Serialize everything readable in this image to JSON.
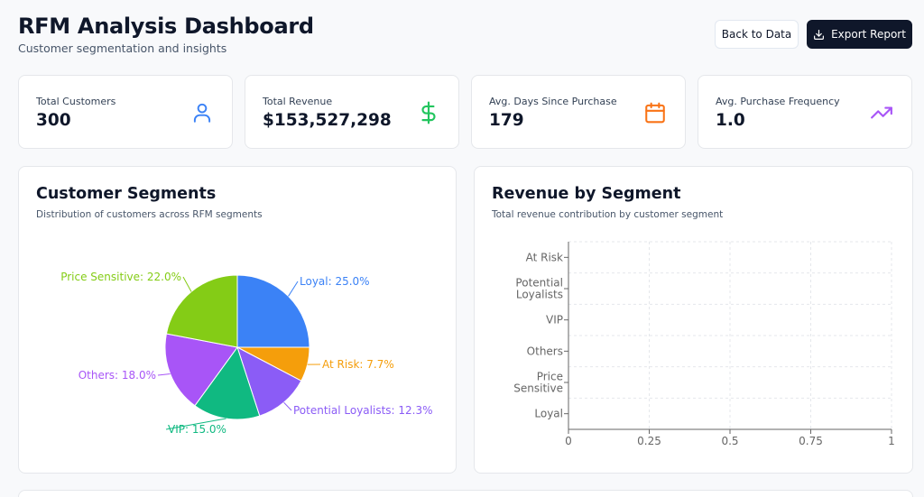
{
  "header": {
    "title": "RFM Analysis Dashboard",
    "subtitle": "Customer segmentation and insights",
    "back_label": "Back to Data",
    "export_label": "Export Report"
  },
  "stats": [
    {
      "label": "Total Customers",
      "value": "300",
      "icon": "user-icon",
      "color": "#3b82f6"
    },
    {
      "label": "Total Revenue",
      "value": "$153,527,298",
      "icon": "dollar-icon",
      "color": "#22c55e"
    },
    {
      "label": "Avg. Days Since Purchase",
      "value": "179",
      "icon": "calendar-icon",
      "color": "#f97316"
    },
    {
      "label": "Avg. Purchase Frequency",
      "value": "1.0",
      "icon": "trending-up-icon",
      "color": "#a855f7"
    }
  ],
  "segments_panel": {
    "title": "Customer Segments",
    "subtitle": "Distribution of customers across RFM segments"
  },
  "revenue_panel": {
    "title": "Revenue by Segment",
    "subtitle": "Total revenue contribution by customer segment"
  },
  "chart_data": [
    {
      "type": "pie",
      "slices": [
        {
          "label": "Loyal",
          "value": 25.0,
          "display": "Loyal: 25.0%",
          "color": "#3b82f6"
        },
        {
          "label": "At Risk",
          "value": 7.7,
          "display": "At Risk: 7.7%",
          "color": "#f59e0b"
        },
        {
          "label": "Potential Loyalists",
          "value": 12.3,
          "display": "Potential Loyalists: 12.3%",
          "color": "#8b5cf6"
        },
        {
          "label": "VIP",
          "value": 15.0,
          "display": "VIP: 15.0%",
          "color": "#10b981"
        },
        {
          "label": "Others",
          "value": 18.0,
          "display": "Others: 18.0%",
          "color": "#a855f7"
        },
        {
          "label": "Price Sensitive",
          "value": 22.0,
          "display": "Price Sensitive: 22.0%",
          "color": "#84cc16"
        }
      ]
    },
    {
      "type": "bar",
      "orientation": "horizontal",
      "categories": [
        [
          "At Risk"
        ],
        [
          "Potential",
          "Loyalists"
        ],
        [
          "VIP"
        ],
        [
          "Others"
        ],
        [
          "Price",
          "Sensitive"
        ],
        [
          "Loyal"
        ]
      ],
      "values": [
        0,
        0,
        0,
        0,
        0,
        0
      ],
      "xlim": [
        0,
        1
      ],
      "xticks": [
        "0",
        "0.25",
        "0.5",
        "0.75",
        "1"
      ],
      "grid": true
    }
  ]
}
